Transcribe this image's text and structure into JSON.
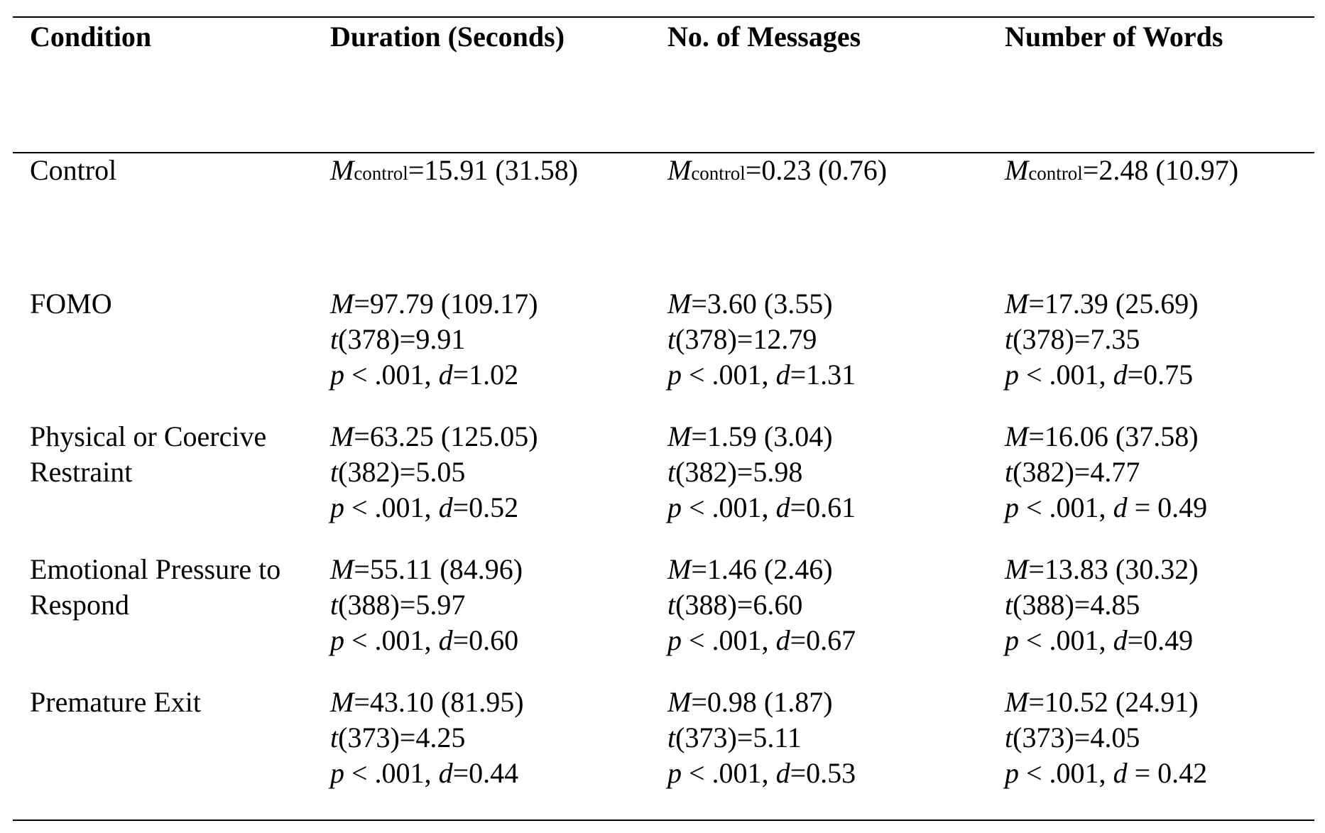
{
  "headers": {
    "condition": "Condition",
    "duration": "Duration (Seconds)",
    "messages": "No. of Messages",
    "words": "Number of Words"
  },
  "control": {
    "label": "Control",
    "m_symbol": "M",
    "m_sub": "control",
    "duration": "=15.91 (31.58)",
    "messages": "=0.23 (0.76)",
    "words": "=2.48 (10.97)"
  },
  "rows": [
    {
      "label_lines": [
        "FOMO"
      ],
      "duration": {
        "m": "=97.79 (109.17)",
        "t": "(378)=9.91",
        "p": " < .001, ",
        "d": "=1.02"
      },
      "messages": {
        "m": "=3.60 (3.55)",
        "t": "(378)=12.79",
        "p": " < .001, ",
        "d": "=1.31"
      },
      "words": {
        "m": "=17.39 (25.69)",
        "t": "(378)=7.35",
        "p": " < .001, ",
        "d": "=0.75"
      }
    },
    {
      "label_lines": [
        "Physical or Coercive",
        "Restraint"
      ],
      "duration": {
        "m": "=63.25 (125.05)",
        "t": "(382)=5.05",
        "p": " < .001, ",
        "d": "=0.52"
      },
      "messages": {
        "m": "=1.59 (3.04)",
        "t": "(382)=5.98",
        "p": " < .001, ",
        "d": "=0.61"
      },
      "words": {
        "m": "=16.06 (37.58)",
        "t": "(382)=4.77",
        "p": " < .001, ",
        "d": " = 0.49"
      }
    },
    {
      "label_lines": [
        "Emotional Pressure to",
        "Respond"
      ],
      "duration": {
        "m": "=55.11 (84.96)",
        "t": "(388)=5.97",
        "p": " < .001, ",
        "d": "=0.60"
      },
      "messages": {
        "m": "=1.46 (2.46)",
        "t": "(388)=6.60",
        "p": " < .001, ",
        "d": "=0.67"
      },
      "words": {
        "m": "=13.83 (30.32)",
        "t": "(388)=4.85",
        "p": " < .001, ",
        "d": "=0.49"
      }
    },
    {
      "label_lines": [
        "Premature Exit"
      ],
      "duration": {
        "m": "=43.10 (81.95)",
        "t": "(373)=4.25",
        "p": " < .001, ",
        "d": "=0.44"
      },
      "messages": {
        "m": "=0.98 (1.87)",
        "t": "(373)=5.11",
        "p": " < .001, ",
        "d": "=0.53"
      },
      "words": {
        "m": "=10.52 (24.91)",
        "t": "(373)=4.05",
        "p": " < .001, ",
        "d": " = 0.42"
      }
    }
  ],
  "symbols": {
    "m": "M",
    "t": "t",
    "p": "p",
    "d": "d"
  }
}
